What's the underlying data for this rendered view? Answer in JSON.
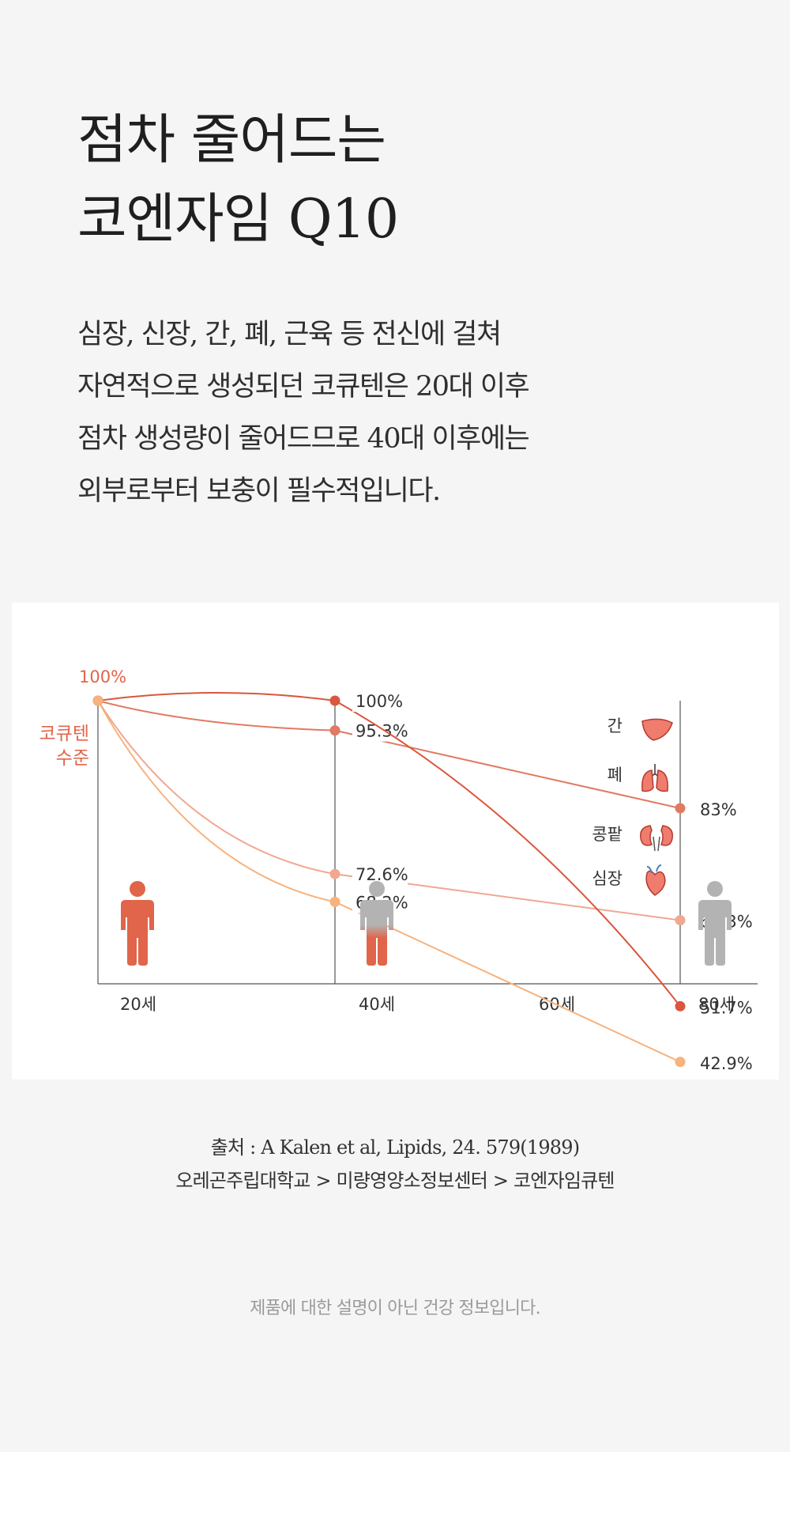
{
  "headline": {
    "line1": "점차 줄어드는",
    "line2": "코엔자임 Q10"
  },
  "description": {
    "lines": [
      "심장, 신장, 간, 폐, 근육 등 전신에 걸쳐",
      "자연적으로 생성되던 코큐텐은 20대 이후",
      "점차 생성량이 줄어드므로 40대 이후에는",
      "외부로부터 보충이 필수적입니다."
    ]
  },
  "chart_data": {
    "type": "line",
    "x": [
      20,
      40,
      80
    ],
    "x_tick_labels": [
      "20세",
      "40세",
      "60세",
      "80세"
    ],
    "x_ticks": [
      20,
      40,
      60,
      80
    ],
    "ylabel": [
      "코큐텐",
      "수준"
    ],
    "start_label": "100%",
    "grid": false,
    "series": [
      {
        "name": "간",
        "values": [
          100,
          95.3,
          83
        ],
        "labels": [
          "",
          "95.3%",
          "83%"
        ],
        "color": "#e07a62",
        "icon": "liver-icon"
      },
      {
        "name": "폐",
        "values": [
          100,
          72.6,
          65.3
        ],
        "labels": [
          "",
          "72.6%",
          "65.3%"
        ],
        "color": "#f0a892",
        "icon": "lungs-icon"
      },
      {
        "name": "콩팥",
        "values": [
          100,
          100,
          51.7
        ],
        "labels": [
          "",
          "100%",
          "51.7%"
        ],
        "color": "#d9573d",
        "icon": "kidney-icon"
      },
      {
        "name": "심장",
        "values": [
          100,
          68.2,
          42.9
        ],
        "labels": [
          "",
          "68.2%",
          "42.9%"
        ],
        "color": "#f7b27d",
        "icon": "heart-icon"
      }
    ],
    "figures": [
      {
        "age": 20,
        "fill": "full",
        "color": "#e0654a"
      },
      {
        "age": 40,
        "fill": "half",
        "color": "#e0654a"
      },
      {
        "age": 80,
        "fill": "none",
        "color": "#b3b3b3"
      }
    ]
  },
  "source": {
    "line1": "출처 : A Kalen et al, Lipids, 24. 579(1989)",
    "line2": "오레곤주립대학교 > 미량영양소정보센터 > 코엔자임큐텐"
  },
  "notice": "제품에 대한 설명이 아닌 건강 정보입니다."
}
